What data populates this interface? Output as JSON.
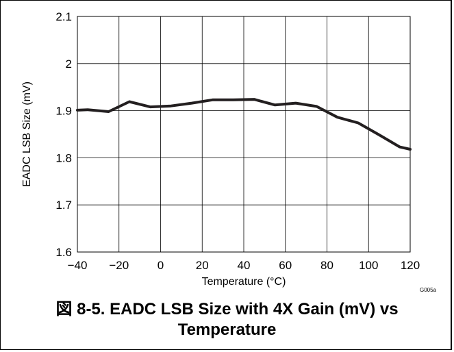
{
  "chart_data": {
    "type": "line",
    "xlabel": "Temperature (°C)",
    "ylabel": "EADC LSB Size (mV)",
    "xlim": [
      -40,
      120
    ],
    "ylim": [
      1.6,
      2.1
    ],
    "xticks": [
      "−40",
      "−20",
      "0",
      "20",
      "40",
      "60",
      "80",
      "100",
      "120"
    ],
    "yticks": [
      "1.6",
      "1.7",
      "1.8",
      "1.9",
      "2",
      "2.1"
    ],
    "grid": true,
    "series": [
      {
        "color": "#231f20",
        "x": [
          -40,
          -35,
          -25,
          -15,
          -5,
          5,
          15,
          25,
          35,
          45,
          55,
          65,
          75,
          85,
          95,
          105,
          115,
          120
        ],
        "y": [
          1.901,
          1.902,
          1.898,
          1.919,
          1.908,
          1.91,
          1.916,
          1.923,
          1.923,
          1.924,
          1.912,
          1.916,
          1.909,
          1.886,
          1.874,
          1.849,
          1.823,
          1.818
        ]
      }
    ]
  },
  "figure_code": "G005a",
  "caption": {
    "line1": "図 8-5. EADC LSB Size with 4X Gain (mV) vs",
    "line2": "Temperature"
  }
}
